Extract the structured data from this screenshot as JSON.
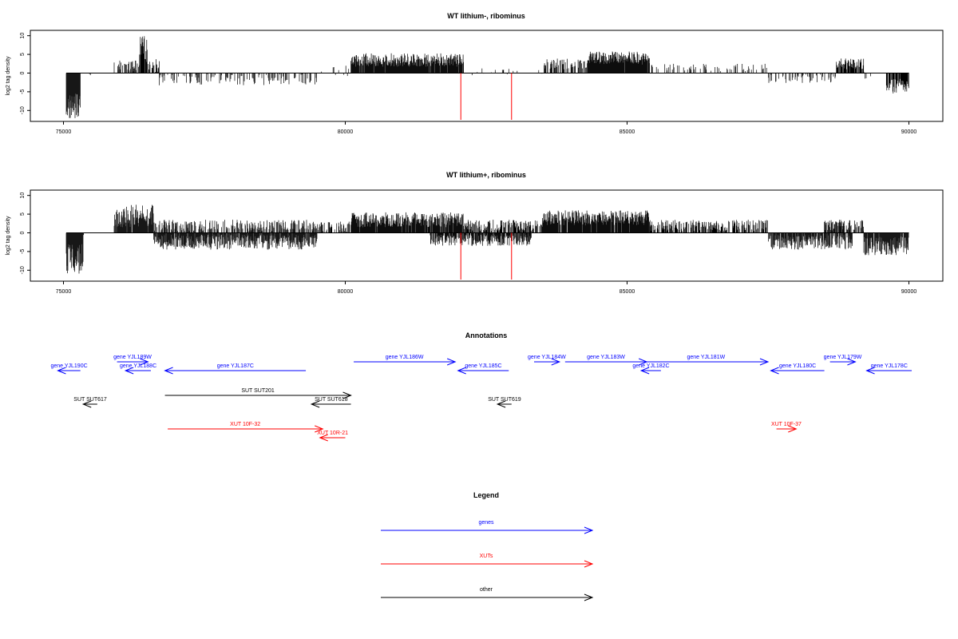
{
  "chart_data": [
    {
      "type": "bar",
      "title": "WT lithium-, ribominus",
      "xlabel": "",
      "ylabel": "log2 tag density",
      "xlim": [
        75000,
        90000
      ],
      "ylim": [
        -12.5,
        11
      ],
      "yticks": [
        -10,
        -5,
        0,
        5,
        10
      ],
      "xticks": [
        75000,
        80000,
        85000,
        90000
      ],
      "xtick_labels": [
        "75000",
        "80000",
        "85000",
        "90000"
      ],
      "segments": [
        {
          "start": 75050,
          "end": 75300,
          "level": -9.0,
          "spread": 3.5,
          "density": 1.0
        },
        {
          "start": 75300,
          "end": 75900,
          "level": -0.3,
          "spread": 0.5,
          "density": 0.05
        },
        {
          "start": 75900,
          "end": 76350,
          "level": 2.0,
          "spread": 1.5,
          "density": 0.5
        },
        {
          "start": 76350,
          "end": 76500,
          "level": 6.5,
          "spread": 3.5,
          "density": 0.9
        },
        {
          "start": 76500,
          "end": 76700,
          "level": 2.0,
          "spread": 2.0,
          "density": 0.5
        },
        {
          "start": 76700,
          "end": 79500,
          "level": -1.8,
          "spread": 1.5,
          "density": 0.25
        },
        {
          "start": 79500,
          "end": 80100,
          "level": 0.5,
          "spread": 1.5,
          "density": 0.1
        },
        {
          "start": 80100,
          "end": 82100,
          "level": 3.5,
          "spread": 1.8,
          "density": 0.95
        },
        {
          "start": 82100,
          "end": 83500,
          "level": 0.3,
          "spread": 1.0,
          "density": 0.06
        },
        {
          "start": 83500,
          "end": 84300,
          "level": 2.5,
          "spread": 1.5,
          "density": 0.5
        },
        {
          "start": 84300,
          "end": 85400,
          "level": 4.0,
          "spread": 1.8,
          "density": 0.95
        },
        {
          "start": 85400,
          "end": 87500,
          "level": 1.5,
          "spread": 1.0,
          "density": 0.2
        },
        {
          "start": 87500,
          "end": 88700,
          "level": -1.5,
          "spread": 1.2,
          "density": 0.3
        },
        {
          "start": 88700,
          "end": 89200,
          "level": 2.5,
          "spread": 1.5,
          "density": 0.7
        },
        {
          "start": 89200,
          "end": 89600,
          "level": -0.5,
          "spread": 1.0,
          "density": 0.1
        },
        {
          "start": 89600,
          "end": 90000,
          "level": -3.5,
          "spread": 2.0,
          "density": 0.8
        }
      ],
      "highlights": [
        {
          "x": 82050,
          "y": -12.5
        },
        {
          "x": 82950,
          "y": -12.5
        }
      ]
    },
    {
      "type": "bar",
      "title": "WT lithium+, ribominus",
      "xlabel": "",
      "ylabel": "log2 tag density",
      "xlim": [
        75000,
        90000
      ],
      "ylim": [
        -12.5,
        11
      ],
      "yticks": [
        -10,
        -5,
        0,
        5,
        10
      ],
      "xticks": [
        75000,
        80000,
        85000,
        90000
      ],
      "xtick_labels": [
        "75000",
        "80000",
        "85000",
        "90000"
      ],
      "segments": [
        {
          "start": 75050,
          "end": 75350,
          "level": -7.0,
          "spread": 4.0,
          "density": 1.0
        },
        {
          "start": 75350,
          "end": 75900,
          "level": -0.3,
          "spread": 0.5,
          "density": 0.05
        },
        {
          "start": 75900,
          "end": 76600,
          "level": 4.5,
          "spread": 3.0,
          "density": 0.9
        },
        {
          "start": 76600,
          "end": 79500,
          "level": -2.5,
          "spread": 2.0,
          "density": 0.9
        },
        {
          "start": 76600,
          "end": 79500,
          "level": 2.0,
          "spread": 1.5,
          "density": 0.5
        },
        {
          "start": 79500,
          "end": 80100,
          "level": 1.5,
          "spread": 1.5,
          "density": 0.5
        },
        {
          "start": 80100,
          "end": 82100,
          "level": 3.5,
          "spread": 2.0,
          "density": 0.95
        },
        {
          "start": 81500,
          "end": 83300,
          "level": -2.0,
          "spread": 1.5,
          "density": 0.8
        },
        {
          "start": 82100,
          "end": 83500,
          "level": 2.0,
          "spread": 1.5,
          "density": 0.6
        },
        {
          "start": 83500,
          "end": 85400,
          "level": 4.0,
          "spread": 2.0,
          "density": 0.95
        },
        {
          "start": 85400,
          "end": 87500,
          "level": 2.0,
          "spread": 1.5,
          "density": 0.6
        },
        {
          "start": 87500,
          "end": 89000,
          "level": -2.5,
          "spread": 2.0,
          "density": 0.8
        },
        {
          "start": 88500,
          "end": 89200,
          "level": 2.0,
          "spread": 1.5,
          "density": 0.6
        },
        {
          "start": 89200,
          "end": 90000,
          "level": -3.5,
          "spread": 2.5,
          "density": 0.9
        }
      ],
      "highlights": [
        {
          "x": 82050,
          "y": -12.5
        },
        {
          "x": 82950,
          "y": -12.5
        }
      ]
    }
  ],
  "annotations": {
    "title": "Annotations",
    "features": [
      {
        "label": "gene YJL190C",
        "start": 75300,
        "end": 74900,
        "row": 1,
        "kind": "gene"
      },
      {
        "label": "gene YJL189W",
        "start": 75950,
        "end": 76500,
        "row": 0,
        "kind": "gene"
      },
      {
        "label": "gene YJL188C",
        "start": 76550,
        "end": 76100,
        "row": 1,
        "kind": "gene"
      },
      {
        "label": "gene YJL187C",
        "start": 79300,
        "end": 76800,
        "row": 1,
        "kind": "gene"
      },
      {
        "label": "gene YJL186W",
        "start": 80150,
        "end": 81950,
        "row": 0,
        "kind": "gene"
      },
      {
        "label": "gene YJL185C",
        "start": 82900,
        "end": 82000,
        "row": 1,
        "kind": "gene"
      },
      {
        "label": "gene YJL184W",
        "start": 83350,
        "end": 83800,
        "row": 0,
        "kind": "gene"
      },
      {
        "label": "gene YJL183W",
        "start": 83900,
        "end": 85350,
        "row": 0,
        "kind": "gene"
      },
      {
        "label": "gene YJL182C",
        "start": 85600,
        "end": 85250,
        "row": 1,
        "kind": "gene"
      },
      {
        "label": "gene YJL181W",
        "start": 85300,
        "end": 87500,
        "row": 0,
        "kind": "gene"
      },
      {
        "label": "gene YJL180C",
        "start": 88500,
        "end": 87550,
        "row": 1,
        "kind": "gene"
      },
      {
        "label": "gene YJL179W",
        "start": 88600,
        "end": 89050,
        "row": 0,
        "kind": "gene"
      },
      {
        "label": "gene YJL178C",
        "start": 90050,
        "end": 89250,
        "row": 1,
        "kind": "gene"
      },
      {
        "label": "SUT SUT617",
        "start": 75600,
        "end": 75350,
        "row": 3,
        "kind": "other"
      },
      {
        "label": "SUT SUT201",
        "start": 76800,
        "end": 80100,
        "row": 2,
        "kind": "other"
      },
      {
        "label": "SUT SUT618",
        "start": 80100,
        "end": 79400,
        "row": 3,
        "kind": "other"
      },
      {
        "label": "SUT SUT619",
        "start": 82950,
        "end": 82700,
        "row": 3,
        "kind": "other"
      },
      {
        "label": "XUT 10F-32",
        "start": 76850,
        "end": 79600,
        "row": 4,
        "kind": "xut"
      },
      {
        "label": "XUT 10R-21",
        "start": 80000,
        "end": 79550,
        "row": 5,
        "kind": "xut"
      },
      {
        "label": "XUT 10F-37",
        "start": 87650,
        "end": 88000,
        "row": 4,
        "kind": "xut"
      }
    ]
  },
  "legend": {
    "title": "Legend",
    "items": [
      {
        "label": "genes",
        "kind": "gene"
      },
      {
        "label": "XUTs",
        "kind": "xut"
      },
      {
        "label": "other",
        "kind": "other"
      }
    ]
  },
  "colors": {
    "gene": "#0000ff",
    "xut": "#ff0000",
    "other": "#000000",
    "highlight": "#ff0000",
    "bars": "#000000",
    "axis": "#000000"
  }
}
